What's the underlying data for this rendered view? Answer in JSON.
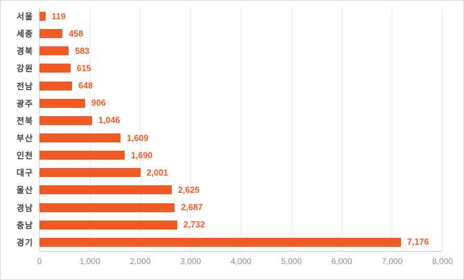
{
  "chart_data": {
    "type": "bar",
    "orientation": "horizontal",
    "title": "",
    "xlabel": "",
    "ylabel": "",
    "categories": [
      "서울",
      "세종",
      "경북",
      "강원",
      "전남",
      "광주",
      "전북",
      "부산",
      "인천",
      "대구",
      "울산",
      "경남",
      "충남",
      "경기"
    ],
    "values": [
      119,
      458,
      583,
      615,
      648,
      906,
      1046,
      1609,
      1690,
      2001,
      2625,
      2687,
      2732,
      7176
    ],
    "value_labels": [
      "119",
      "458",
      "583",
      "615",
      "648",
      "906",
      "1,046",
      "1,609",
      "1,690",
      "2,001",
      "2,625",
      "2,687",
      "2,732",
      "7,176"
    ],
    "xlim": [
      0,
      8000
    ],
    "x_ticks": [
      "0",
      "1,000",
      "2,000",
      "3,000",
      "4,000",
      "5,000",
      "6,000",
      "7,000",
      "8,000"
    ],
    "grid": true,
    "legend": "none",
    "bar_color": "#f15a22",
    "value_label_color": "#f15a22",
    "category_label_color": "#3d3d3d",
    "tick_label_color": "#8c8c8c",
    "gridline_color": "#e6e6e6"
  }
}
